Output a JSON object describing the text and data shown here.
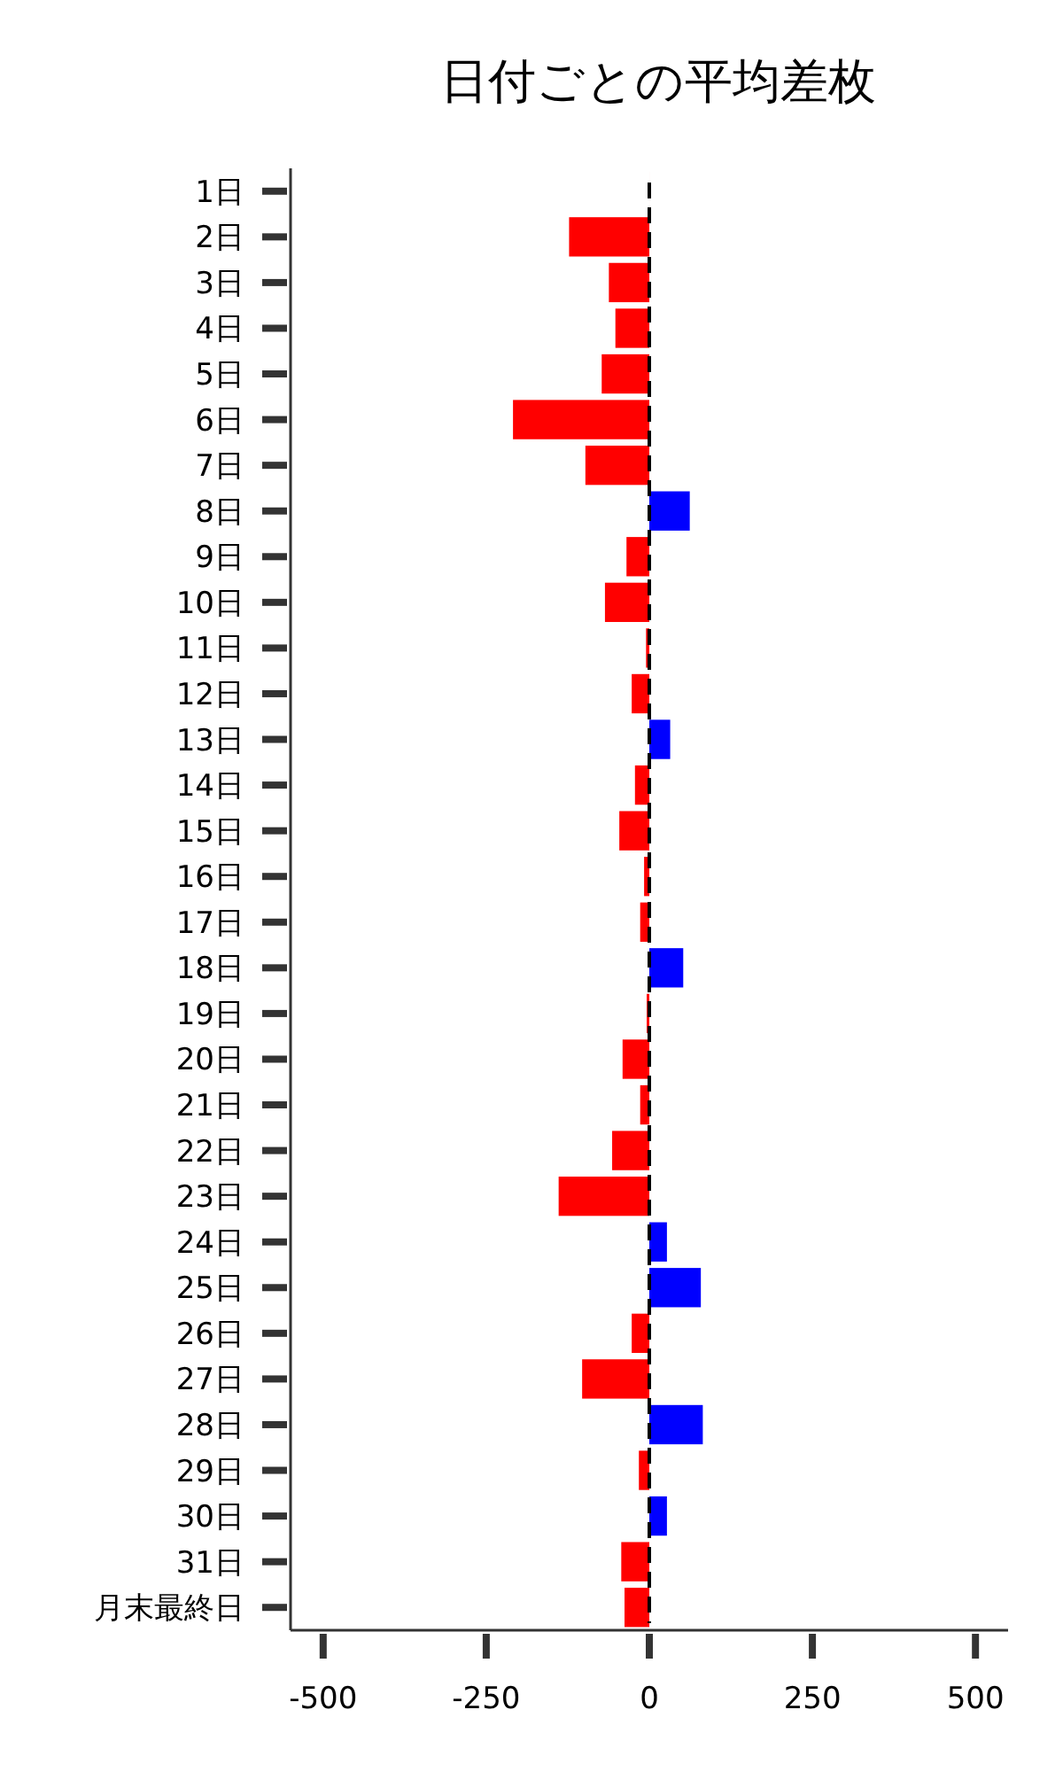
{
  "chart_data": {
    "type": "bar",
    "orientation": "horizontal",
    "title": "日付ごとの平均差枚",
    "categories": [
      "1日",
      "2日",
      "3日",
      "4日",
      "5日",
      "6日",
      "7日",
      "8日",
      "9日",
      "10日",
      "11日",
      "12日",
      "13日",
      "14日",
      "15日",
      "16日",
      "17日",
      "18日",
      "19日",
      "20日",
      "21日",
      "22日",
      "23日",
      "24日",
      "25日",
      "26日",
      "27日",
      "28日",
      "29日",
      "30日",
      "31日",
      "月末最終日"
    ],
    "values": [
      0,
      -123,
      -62,
      -52,
      -73,
      -209,
      -98,
      62,
      -35,
      -68,
      -5,
      -27,
      32,
      -22,
      -46,
      -8,
      -14,
      52,
      -4,
      -41,
      -14,
      -57,
      -139,
      27,
      79,
      -27,
      -103,
      82,
      -16,
      27,
      -43,
      -38
    ],
    "colors": [
      "#ff0000",
      "#ff0000",
      "#ff0000",
      "#ff0000",
      "#ff0000",
      "#ff0000",
      "#ff0000",
      "#0000ff",
      "#ff0000",
      "#ff0000",
      "#ff0000",
      "#ff0000",
      "#0000ff",
      "#ff0000",
      "#ff0000",
      "#ff0000",
      "#ff0000",
      "#0000ff",
      "#ff0000",
      "#ff0000",
      "#ff0000",
      "#ff0000",
      "#ff0000",
      "#0000ff",
      "#0000ff",
      "#ff0000",
      "#ff0000",
      "#0000ff",
      "#ff0000",
      "#0000ff",
      "#ff0000",
      "#ff0000"
    ],
    "xlim": [
      -550,
      550
    ],
    "xticks": [
      -500,
      -250,
      0,
      250,
      500
    ],
    "ref_lines": [
      {
        "axis": "x",
        "value": 0,
        "color": "#000000",
        "line_style": "dashed"
      }
    ],
    "grid": false
  }
}
